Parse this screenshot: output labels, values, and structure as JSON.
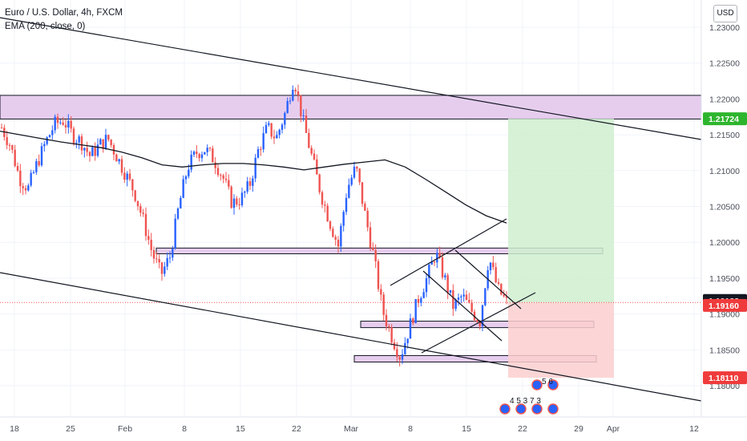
{
  "legend": {
    "symbol": "Euro / U.S. Dollar, 4h, FXCM",
    "indicator": "EMA (200, close, 0)"
  },
  "currency_button": "USD",
  "colors": {
    "up": "#2962ff",
    "down": "#ef5350",
    "zone_fill": "#e6cdee",
    "profit_fill": "#cfeecf",
    "loss_fill": "#fbcfcf",
    "take_profit_tag": "#2eb52e",
    "price_tag": "#ef3b3b",
    "last_tag": "#131722"
  },
  "chart_data": {
    "type": "candlestick",
    "symbol": "EURUSD",
    "timeframe": "4h",
    "ylim": [
      1.1765,
      1.2322
    ],
    "y_ticks": [
      "1.23000",
      "1.22500",
      "1.22000",
      "1.21500",
      "1.21000",
      "1.20500",
      "1.20000",
      "1.19500",
      "1.19000",
      "1.18500",
      "1.18000"
    ],
    "x_ticks": [
      "18",
      "25",
      "Feb",
      "8",
      "15",
      "22",
      "Mar",
      "8",
      "15",
      "22",
      "29",
      "Apr",
      "12"
    ],
    "close_path": [
      1.216,
      1.2135,
      1.209,
      1.2075,
      1.211,
      1.214,
      1.2165,
      1.217,
      1.215,
      1.214,
      1.212,
      1.2135,
      1.2145,
      1.212,
      1.2095,
      1.207,
      1.203,
      1.1985,
      1.1955,
      1.198,
      1.205,
      1.2105,
      1.2125,
      1.213,
      1.2115,
      1.209,
      1.2055,
      1.206,
      1.208,
      1.213,
      1.216,
      1.2145,
      1.218,
      1.223,
      1.217,
      1.212,
      1.207,
      1.203,
      1.1995,
      1.2075,
      1.2105,
      1.204,
      1.198,
      1.1905,
      1.187,
      1.184,
      1.188,
      1.192,
      1.195,
      1.1985,
      1.195,
      1.191,
      1.1925,
      1.1905,
      1.189,
      1.198,
      1.1935,
      1.1916
    ],
    "ema200": [
      1.2155,
      1.215,
      1.2145,
      1.214,
      1.2136,
      1.2132,
      1.2126,
      1.2118,
      1.2108,
      1.2105,
      1.2108,
      1.211,
      1.211,
      1.2108,
      1.2105,
      1.2101,
      1.2105,
      1.2109,
      1.2112,
      1.2115,
      1.2105,
      1.2088,
      1.207,
      1.2052,
      1.2037,
      1.2027
    ],
    "levels": {
      "last_price": "1.19188",
      "current_price": "1.19160",
      "take_profit": "1.21724",
      "stop_loss": "1.18110"
    },
    "annotations": {
      "events_top": "5 6",
      "events_bottom": "4 5 3 7 3"
    }
  }
}
